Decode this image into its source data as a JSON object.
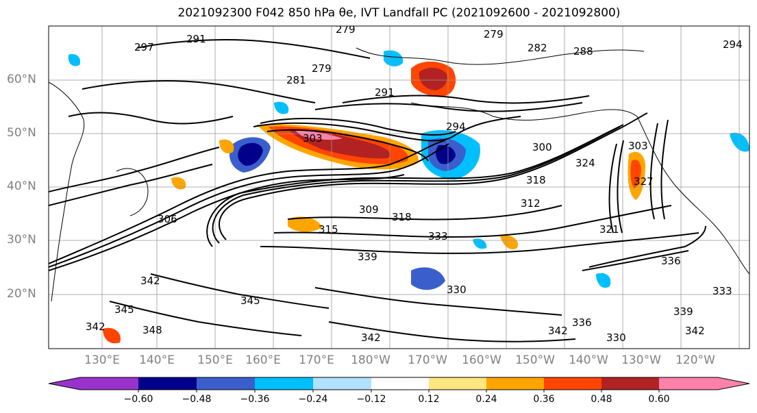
{
  "title": {
    "text": "2021092300 F042 850 hPa θe, IVT Landfall PC (2021092600 - 2021092800)"
  },
  "map": {
    "lat_labels": [
      "60°N",
      "50°N",
      "40°N",
      "30°N",
      "20°N"
    ],
    "lon_labels": [
      "130°E",
      "140°E",
      "150°E",
      "160°E",
      "170°E",
      "180°W",
      "170°W",
      "160°W",
      "150°W",
      "140°W",
      "130°W",
      "120°W"
    ],
    "contour_labels": [
      "279",
      "279",
      "282",
      "297",
      "291",
      "288",
      "294",
      "279",
      "281",
      "291",
      "294",
      "303",
      "300",
      "303",
      "309",
      "318",
      "333",
      "336",
      "339",
      "342",
      "345",
      "345",
      "348",
      "342",
      "342",
      "330",
      "342",
      "336",
      "339",
      "342",
      "333",
      "330",
      "324",
      "318",
      "312",
      "321",
      "315",
      "327",
      "306"
    ],
    "land_color": "#000000"
  },
  "colorbar": {
    "colors": [
      "#9932cc",
      "#00008b",
      "#3a5fcd",
      "#00bfff",
      "#b0e2ff",
      "#ffffff",
      "#ffe680",
      "#ffa500",
      "#ff4500",
      "#b22222",
      "#ff82ab"
    ],
    "tick_labels": [
      "−0.60",
      "−0.48",
      "−0.36",
      "−0.24",
      "−0.12",
      "0.12",
      "0.24",
      "0.36",
      "0.48",
      "0.60"
    ]
  }
}
